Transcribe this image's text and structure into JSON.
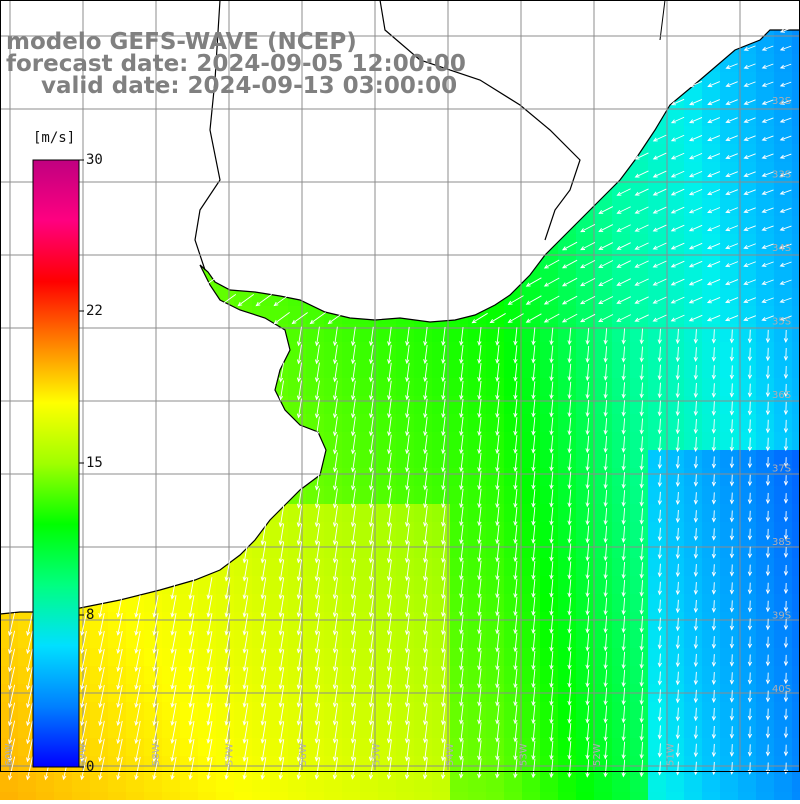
{
  "title": {
    "model": "modelo GEFS-WAVE (NCEP)",
    "forecast": "forecast date: 2024-09-05 12:00:00",
    "valid": "valid date: 2024-09-13 03:00:00"
  },
  "colorbar": {
    "unit": "[m/s]",
    "ticks": [
      "30",
      "22",
      "15",
      "8",
      "0"
    ],
    "colors": [
      "#0000ff",
      "#0080ff",
      "#00e0ff",
      "#00ff80",
      "#00ff00",
      "#a0ff00",
      "#ffff00",
      "#ff8000",
      "#ff0000",
      "#ff0080",
      "#c00080"
    ]
  },
  "map": {
    "lat_labels": [
      "32S",
      "33S",
      "34S",
      "35S",
      "36S",
      "37S",
      "38S",
      "39S",
      "40S"
    ],
    "lon_labels": [
      "60W",
      "59W",
      "58W",
      "57W",
      "56W",
      "55W",
      "54W",
      "53W",
      "52W",
      "51W"
    ],
    "variable": "wind speed with direction arrows",
    "colors": {
      "land": "#ffffff",
      "coast": "#000000",
      "grid": "#8c8c8c",
      "arrow": "#ffffff"
    }
  }
}
